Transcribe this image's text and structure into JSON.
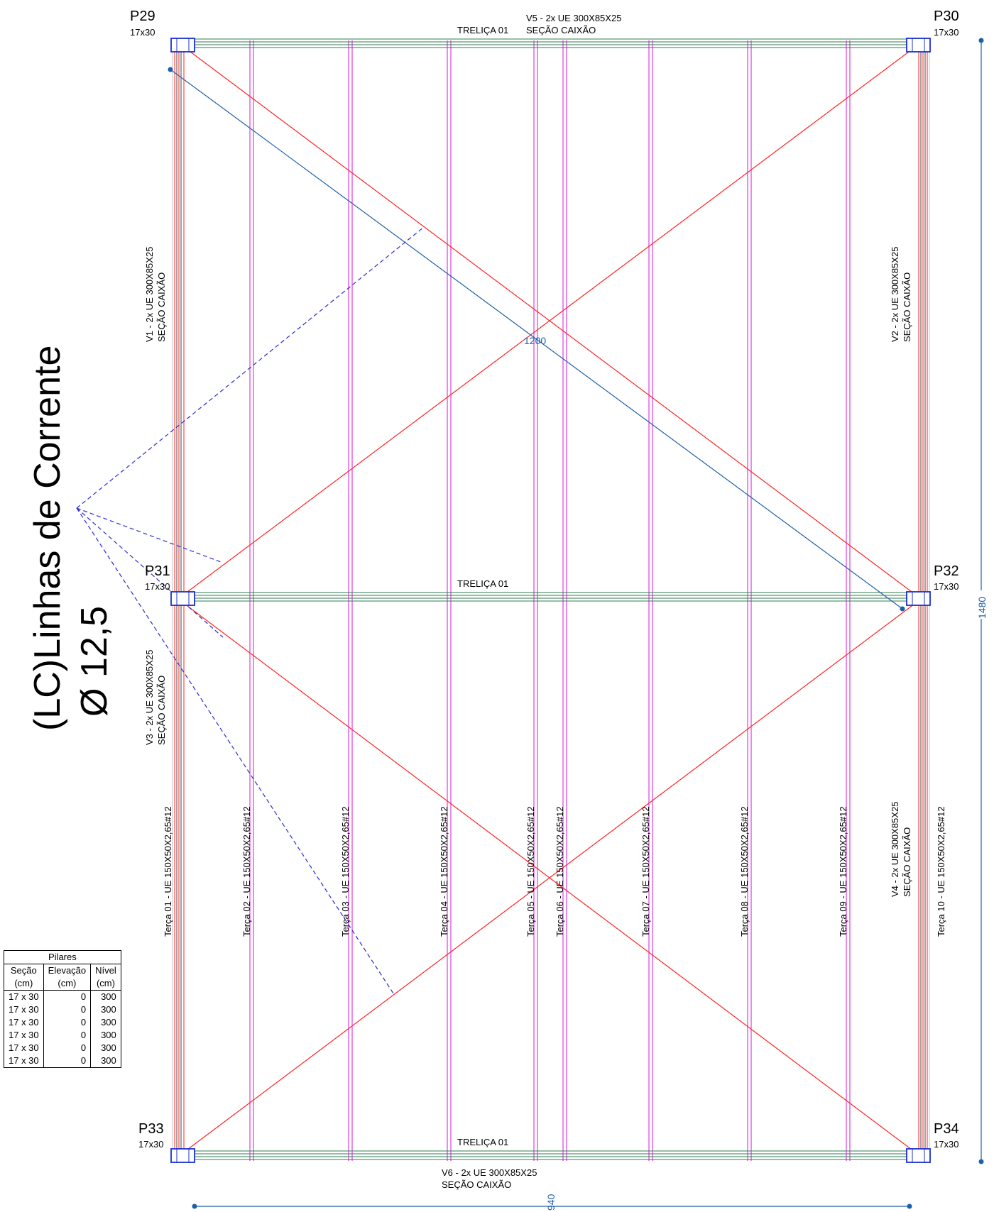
{
  "pillars": [
    {
      "name": "P29",
      "size": "17x30"
    },
    {
      "name": "P30",
      "size": "17x30"
    },
    {
      "name": "P31",
      "size": "17x30"
    },
    {
      "name": "P32",
      "size": "17x30"
    },
    {
      "name": "P33",
      "size": "17x30"
    },
    {
      "name": "P34",
      "size": "17x30"
    }
  ],
  "beams": {
    "v5_line1": "V5 - 2x UE 300X85X25",
    "v5_line2": "SEÇÃO CAIXÃO",
    "v6_line1": "V6 - 2x UE 300X85X25",
    "v6_line2": "SEÇÃO CAIXÃO",
    "v1_line1": "V1 - 2x UE 300X85X25",
    "v1_line2": "SEÇÃO CAIXÃO",
    "v2_line1": "V2 - 2x UE 300X85X25",
    "v2_line2": "SEÇÃO CAIXÃO",
    "v3_line1": "V3 - 2x UE 300X85X25",
    "v3_line2": "SEÇÃO CAIXÃO",
    "v4_line1": "V4 - 2x UE 300X85X25",
    "v4_line2": "SEÇÃO CAIXÃO"
  },
  "trusses": {
    "top": "TRELIÇA 01",
    "mid": "TRELIÇA 01",
    "bottom": "TRELIÇA 01"
  },
  "purlins": [
    "Terça 01 - UE  150X50X2,65#12",
    "Terça 02 - UE  150X50X2,65#12",
    "Terça 03 - UE  150X50X2,65#12",
    "Terça 04 - UE  150X50X2,65#12",
    "Terça 05 - UE  150X50X2,65#12",
    "Terça 06 - UE  150X50X2,65#12",
    "Terça 07 - UE  150X50X2,65#12",
    "Terça 08 - UE  150X50X2,65#12",
    "Terça 09 - UE  150X50X2,65#12",
    "Terça 10 - UE  150X50X2,65#12"
  ],
  "callout": {
    "line1": "(LC)Linhas de Corrente",
    "line2": "Ø 12,5"
  },
  "dimensions": {
    "diagonal": "1200",
    "height": "1480",
    "width": "940"
  },
  "table": {
    "title": "Pilares",
    "headers": [
      {
        "l1": "Seção",
        "l2": "(cm)"
      },
      {
        "l1": "Elevação",
        "l2": "(cm)"
      },
      {
        "l1": "Nível",
        "l2": "(cm)"
      }
    ],
    "rows": [
      [
        "17 x 30",
        "0",
        "300"
      ],
      [
        "17 x 30",
        "0",
        "300"
      ],
      [
        "17 x 30",
        "0",
        "300"
      ],
      [
        "17 x 30",
        "0",
        "300"
      ],
      [
        "17 x 30",
        "0",
        "300"
      ],
      [
        "17 x 30",
        "0",
        "300"
      ]
    ]
  },
  "colors": {
    "bracing": "#ff2222",
    "purlin": "#e03ce0",
    "beam": "#2e7d4f",
    "dimension": "#1f5fa8",
    "callout": "#2a2ad0",
    "pillar": "#1a2fd0"
  }
}
